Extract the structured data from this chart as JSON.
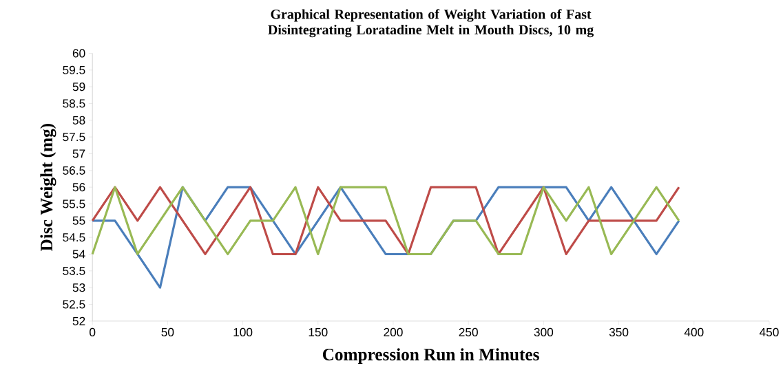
{
  "chart_data": {
    "type": "line",
    "title": "Graphical Representation of Weight Variation of Fast Disintegrating Loratadine Melt in Mouth Discs, 10 mg",
    "xlabel": "Compression Run in Minutes",
    "ylabel": "Disc Weight (mg)",
    "x": [
      0,
      15,
      30,
      45,
      60,
      75,
      90,
      105,
      120,
      135,
      150,
      165,
      180,
      195,
      210,
      225,
      240,
      255,
      270,
      285,
      300,
      315,
      330,
      345,
      360,
      375,
      390
    ],
    "series": [
      {
        "color": "#4a7ebb",
        "values": [
          55,
          55,
          54,
          53,
          56,
          55,
          56,
          56,
          55,
          54,
          55,
          56,
          55,
          54,
          54,
          54,
          55,
          55,
          56,
          56,
          56,
          56,
          55,
          56,
          55,
          54,
          55
        ]
      },
      {
        "color": "#be4b48",
        "values": [
          55,
          56,
          55,
          56,
          55,
          54,
          55,
          56,
          54,
          54,
          56,
          55,
          55,
          55,
          54,
          56,
          56,
          56,
          54,
          55,
          56,
          54,
          55,
          55,
          55,
          55,
          56
        ]
      },
      {
        "color": "#98b954",
        "values": [
          54,
          56,
          54,
          55,
          56,
          55,
          54,
          55,
          55,
          56,
          54,
          56,
          56,
          56,
          54,
          54,
          55,
          55,
          54,
          54,
          56,
          55,
          56,
          54,
          55,
          56,
          55
        ]
      }
    ],
    "xlim": [
      0,
      450
    ],
    "xticks": [
      0,
      50,
      100,
      150,
      200,
      250,
      300,
      350,
      400,
      450
    ],
    "ylim": [
      52,
      60
    ],
    "yticks": [
      52,
      52.5,
      53,
      53.5,
      54,
      54.5,
      55,
      55.5,
      56,
      56.5,
      57,
      57.5,
      58,
      58.5,
      59,
      59.5,
      60
    ],
    "marker": "none",
    "line_style": "solid"
  }
}
